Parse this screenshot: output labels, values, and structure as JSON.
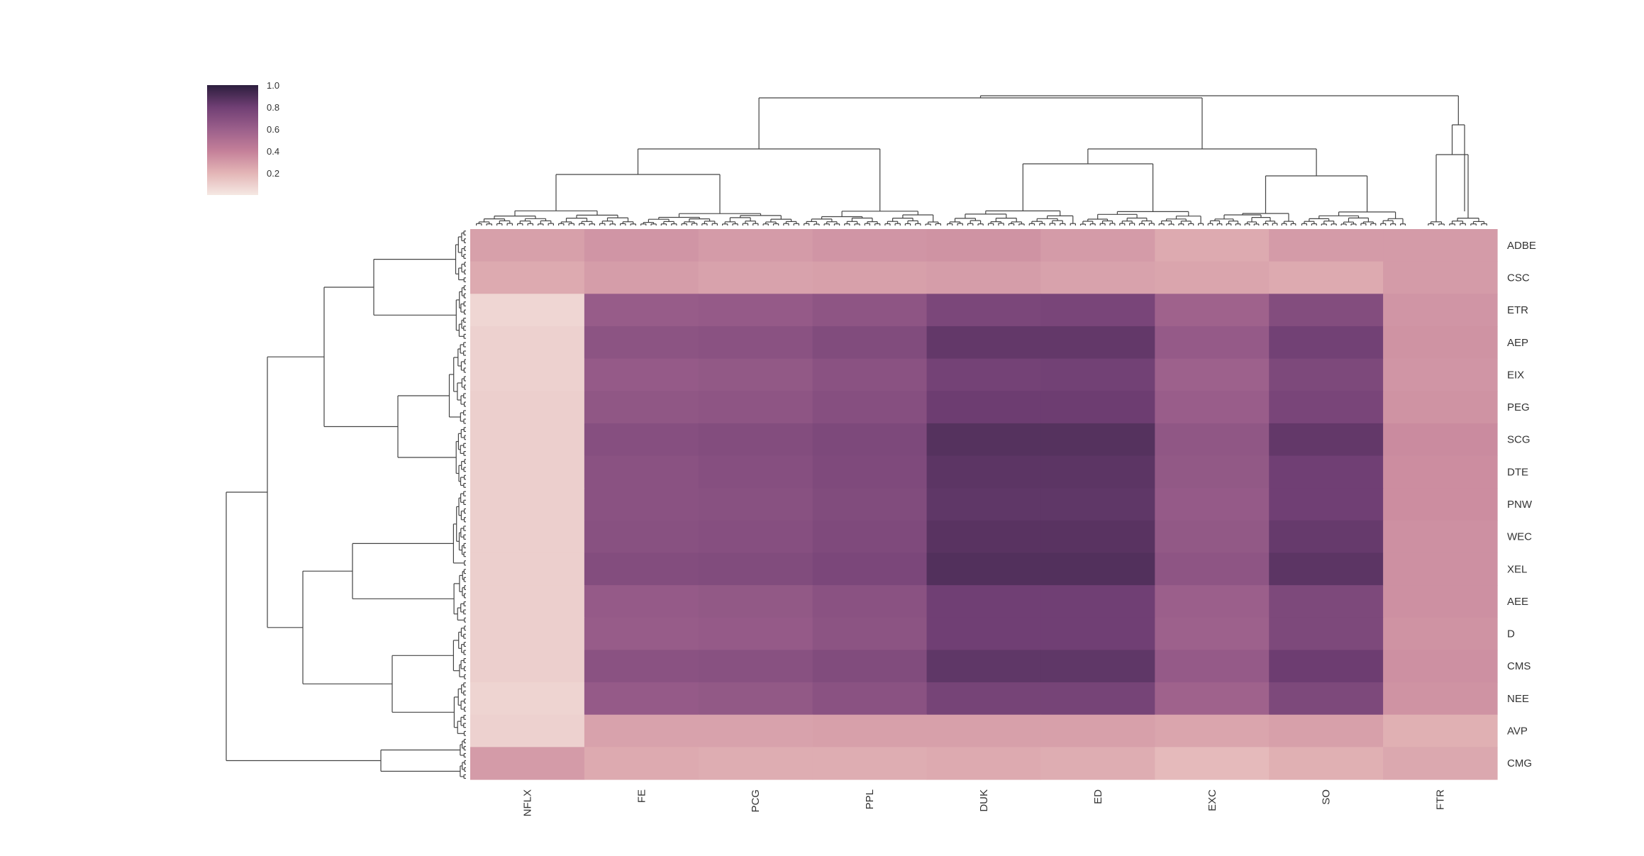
{
  "chart_data": {
    "type": "heatmap",
    "subtype": "clustermap",
    "title": "",
    "columns": [
      "NFLX",
      "FE",
      "PCG",
      "PPL",
      "DUK",
      "ED",
      "EXC",
      "SO",
      "FTR"
    ],
    "rows": [
      "ADBE",
      "CSC",
      "ETR",
      "AEP",
      "EIX",
      "PEG",
      "SCG",
      "DTE",
      "PNW",
      "WEC",
      "XEL",
      "AEE",
      "D",
      "CMS",
      "NEE",
      "AVP",
      "CMG"
    ],
    "values": [
      [
        0.28,
        0.32,
        0.3,
        0.32,
        0.33,
        0.3,
        0.24,
        0.3,
        0.3
      ],
      [
        0.24,
        0.29,
        0.27,
        0.28,
        0.29,
        0.27,
        0.26,
        0.24,
        0.3
      ],
      [
        0.07,
        0.62,
        0.63,
        0.66,
        0.75,
        0.76,
        0.58,
        0.71,
        0.32
      ],
      [
        0.09,
        0.67,
        0.68,
        0.72,
        0.84,
        0.84,
        0.63,
        0.79,
        0.33
      ],
      [
        0.09,
        0.63,
        0.64,
        0.68,
        0.78,
        0.79,
        0.59,
        0.74,
        0.32
      ],
      [
        0.1,
        0.65,
        0.66,
        0.7,
        0.81,
        0.81,
        0.61,
        0.76,
        0.33
      ],
      [
        0.1,
        0.7,
        0.71,
        0.74,
        0.88,
        0.88,
        0.65,
        0.84,
        0.36
      ],
      [
        0.1,
        0.68,
        0.7,
        0.73,
        0.86,
        0.86,
        0.64,
        0.8,
        0.35
      ],
      [
        0.1,
        0.68,
        0.69,
        0.72,
        0.85,
        0.85,
        0.63,
        0.8,
        0.35
      ],
      [
        0.1,
        0.69,
        0.7,
        0.73,
        0.87,
        0.87,
        0.64,
        0.83,
        0.34
      ],
      [
        0.1,
        0.71,
        0.72,
        0.75,
        0.89,
        0.89,
        0.66,
        0.86,
        0.34
      ],
      [
        0.1,
        0.63,
        0.64,
        0.68,
        0.8,
        0.8,
        0.6,
        0.74,
        0.34
      ],
      [
        0.1,
        0.62,
        0.63,
        0.67,
        0.8,
        0.8,
        0.59,
        0.74,
        0.33
      ],
      [
        0.1,
        0.68,
        0.69,
        0.72,
        0.85,
        0.85,
        0.63,
        0.81,
        0.34
      ],
      [
        0.08,
        0.63,
        0.64,
        0.68,
        0.77,
        0.77,
        0.58,
        0.74,
        0.33
      ],
      [
        0.09,
        0.27,
        0.27,
        0.28,
        0.28,
        0.28,
        0.26,
        0.28,
        0.22
      ],
      [
        0.3,
        0.24,
        0.23,
        0.23,
        0.24,
        0.23,
        0.18,
        0.22,
        0.25
      ]
    ],
    "colorbar": {
      "ticks": [
        "0.2",
        "0.4",
        "0.6",
        "0.8",
        "1.0"
      ],
      "min": 0.0,
      "max": 1.0
    },
    "colormap": [
      "#f5e8e3",
      "#e3b5b6",
      "#c48099",
      "#9b5f8b",
      "#703f74",
      "#2d1e3e"
    ]
  }
}
